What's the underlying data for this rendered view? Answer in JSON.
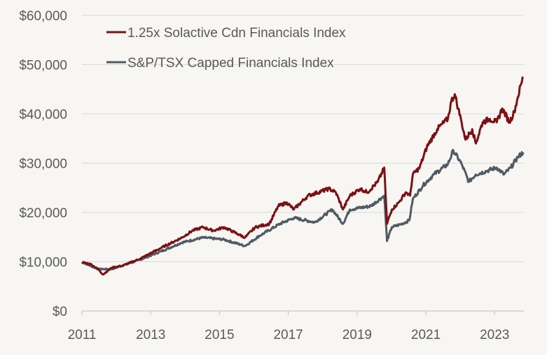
{
  "chart_data": {
    "type": "line",
    "title": "",
    "xlabel": "",
    "ylabel": "",
    "xlim": [
      2011,
      2023.85
    ],
    "ylim": [
      0,
      60000
    ],
    "grid": true,
    "legend_position": "top-left",
    "x_ticks": [
      2011,
      2013,
      2015,
      2017,
      2019,
      2021,
      2023
    ],
    "x_tick_labels": [
      "2011",
      "2013",
      "2015",
      "2017",
      "2019",
      "2021",
      "2023"
    ],
    "y_ticks": [
      0,
      10000,
      20000,
      30000,
      40000,
      50000,
      60000
    ],
    "y_tick_labels": [
      "$0",
      "$10,000",
      "$20,000",
      "$30,000",
      "$40,000",
      "$50,000",
      "$60,000"
    ],
    "series": [
      {
        "name": "1.25x Solactive Cdn Financials Index",
        "color": "#7b1113",
        "x": [
          2011.0,
          2011.26,
          2011.47,
          2011.61,
          2011.87,
          2012.18,
          2012.69,
          2013.3,
          2013.91,
          2014.21,
          2014.52,
          2014.82,
          2015.13,
          2015.54,
          2015.74,
          2016.04,
          2016.45,
          2016.71,
          2016.96,
          2017.16,
          2017.57,
          2018.18,
          2018.38,
          2018.59,
          2018.79,
          2019.09,
          2019.3,
          2019.6,
          2019.79,
          2019.87,
          2020.01,
          2020.21,
          2020.42,
          2020.54,
          2020.62,
          2020.82,
          2021.03,
          2021.33,
          2021.64,
          2021.74,
          2021.84,
          2021.94,
          2022.04,
          2022.15,
          2022.35,
          2022.45,
          2022.65,
          2022.86,
          2023.06,
          2023.22,
          2023.43,
          2023.57,
          2023.67,
          2023.77,
          2023.83
        ],
        "y": [
          9900,
          9500,
          8500,
          7400,
          8800,
          9200,
          10600,
          12800,
          14900,
          16300,
          17000,
          16300,
          17000,
          15600,
          14900,
          17000,
          17700,
          21300,
          22000,
          20600,
          23400,
          24800,
          24100,
          20600,
          23400,
          24800,
          24100,
          26200,
          29100,
          17700,
          20600,
          22000,
          24100,
          23400,
          27700,
          29100,
          33300,
          36900,
          39000,
          42600,
          44000,
          41100,
          38300,
          34800,
          36900,
          34000,
          38300,
          39000,
          38300,
          41100,
          38300,
          40400,
          43300,
          46100,
          47500
        ]
      },
      {
        "name": "S&P/TSX Capped Financials Index",
        "color": "#4f5b62",
        "x": [
          2011.0,
          2011.47,
          2011.87,
          2012.69,
          2013.3,
          2013.91,
          2014.52,
          2015.13,
          2015.74,
          2016.15,
          2016.76,
          2017.16,
          2017.77,
          2018.28,
          2018.59,
          2018.79,
          2019.4,
          2019.79,
          2019.87,
          2020.01,
          2020.31,
          2020.52,
          2020.62,
          2020.92,
          2021.23,
          2021.64,
          2021.8,
          2022.04,
          2022.25,
          2022.45,
          2022.76,
          2023.06,
          2023.27,
          2023.47,
          2023.67,
          2023.83
        ],
        "y": [
          9900,
          8500,
          8500,
          10400,
          12100,
          13900,
          14900,
          14500,
          13200,
          15200,
          17700,
          18900,
          18000,
          20600,
          17700,
          20600,
          21300,
          23400,
          14200,
          17000,
          17700,
          18400,
          22700,
          25500,
          27700,
          29800,
          32600,
          29800,
          26200,
          27700,
          28400,
          29100,
          27700,
          29100,
          31200,
          32200
        ]
      }
    ]
  }
}
